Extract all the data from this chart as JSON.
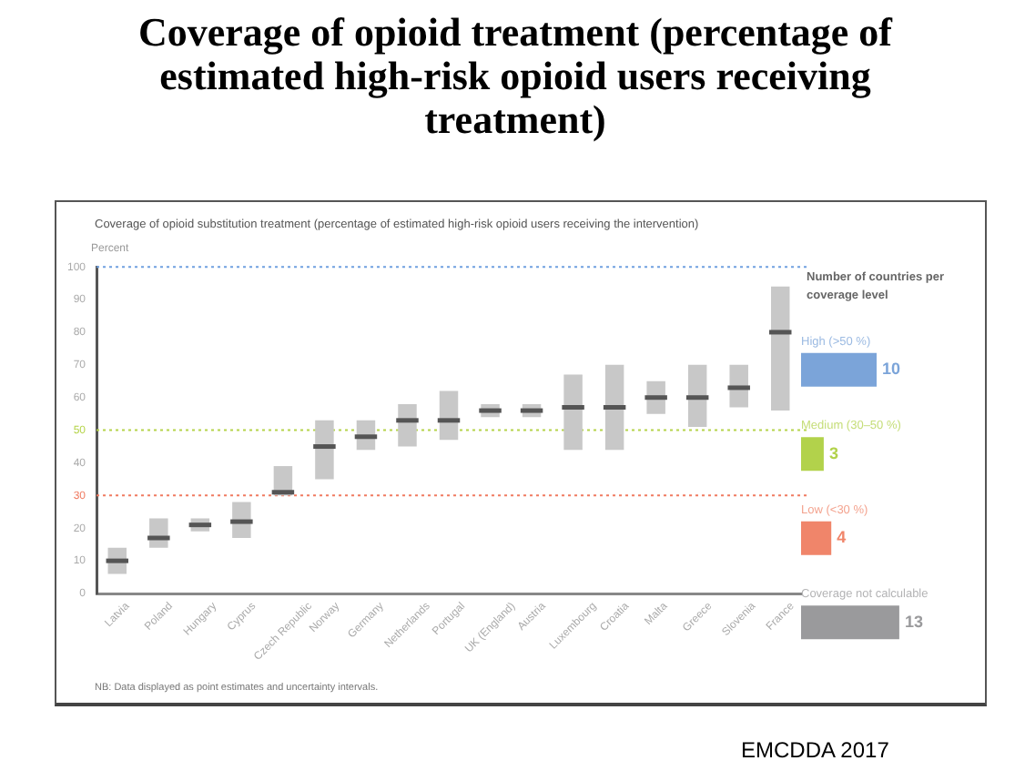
{
  "chart_data": [
    {
      "type": "box",
      "title": "Coverage of opioid treatment (percentage of estimated high-risk opioid users receiving treatment)",
      "subtitle": "Coverage of opioid substitution treatment (percentage of estimated high-risk opioid users receiving the intervention)",
      "ylabel": "Percent",
      "categories": [
        "Latvia",
        "Poland",
        "Hungary",
        "Cyprus",
        "Czech Republic",
        "Norway",
        "Germany",
        "Netherlands",
        "Portugal",
        "UK (England)",
        "Austria",
        "Luxembourg",
        "Croatia",
        "Malta",
        "Greece",
        "Slovenia",
        "France"
      ],
      "series": [
        {
          "color": "#c8c8c8",
          "boxes": [
            {
              "low": 6,
              "q1": 6,
              "median": 10,
              "q3": 14,
              "high": 14
            },
            {
              "low": 14,
              "q1": 14,
              "median": 17,
              "q3": 23,
              "high": 23
            },
            {
              "low": 19,
              "q1": 19,
              "median": 21,
              "q3": 23,
              "high": 23
            },
            {
              "low": 17,
              "q1": 17,
              "median": 22,
              "q3": 28,
              "high": 28
            },
            {
              "low": 30,
              "q1": 30,
              "median": 31,
              "q3": 39,
              "high": 39
            },
            {
              "low": 35,
              "q1": 35,
              "median": 45,
              "q3": 53,
              "high": 53
            },
            {
              "low": 44,
              "q1": 44,
              "median": 48,
              "q3": 53,
              "high": 53
            },
            {
              "low": 45,
              "q1": 45,
              "median": 53,
              "q3": 58,
              "high": 58
            },
            {
              "low": 47,
              "q1": 47,
              "median": 53,
              "q3": 62,
              "high": 62
            },
            {
              "low": 54,
              "q1": 54,
              "median": 56,
              "q3": 58,
              "high": 58
            },
            {
              "low": 54,
              "q1": 54,
              "median": 56,
              "q3": 58,
              "high": 58
            },
            {
              "low": 44,
              "q1": 44,
              "median": 57,
              "q3": 67,
              "high": 67
            },
            {
              "low": 44,
              "q1": 44,
              "median": 57,
              "q3": 70,
              "high": 70
            },
            {
              "low": 55,
              "q1": 55,
              "median": 60,
              "q3": 65,
              "high": 65
            },
            {
              "low": 51,
              "q1": 51,
              "median": 60,
              "q3": 70,
              "high": 70
            },
            {
              "low": 57,
              "q1": 57,
              "median": 63,
              "q3": 70,
              "high": 70
            },
            {
              "low": 56,
              "q1": 56,
              "median": 80,
              "q3": 94,
              "high": 94
            }
          ]
        }
      ],
      "ylim": [
        0,
        100
      ],
      "yticks": [
        0,
        10,
        20,
        30,
        40,
        50,
        60,
        70,
        80,
        90,
        100
      ],
      "grid": false,
      "legend": false,
      "ref_lines": [
        {
          "axis": "y",
          "value": 100,
          "color": "#6fa0e0",
          "line_style": "dotted"
        },
        {
          "axis": "y",
          "value": 50,
          "color": "#b5d44a",
          "line_style": "dotted"
        },
        {
          "axis": "y",
          "value": 30,
          "color": "#f07a60",
          "line_style": "dotted"
        }
      ],
      "annotations": [
        "NB: Data displayed as point estimates and uncertainty intervals.",
        "EMCDDA 2017"
      ]
    },
    {
      "type": "bar",
      "orientation": "horizontal",
      "title": "Number of countries per coverage level",
      "categories": [
        "High (>50 %)",
        "Medium (30–50 %)",
        "Low (<30 %)",
        "Coverage not calculable"
      ],
      "values": [
        10,
        3,
        4,
        13
      ],
      "colors": [
        "#7ba4d9",
        "#b2d24b",
        "#f0856a",
        "#9a9a9c"
      ],
      "data_labels": true,
      "legend": false,
      "tick_labels": false
    }
  ]
}
